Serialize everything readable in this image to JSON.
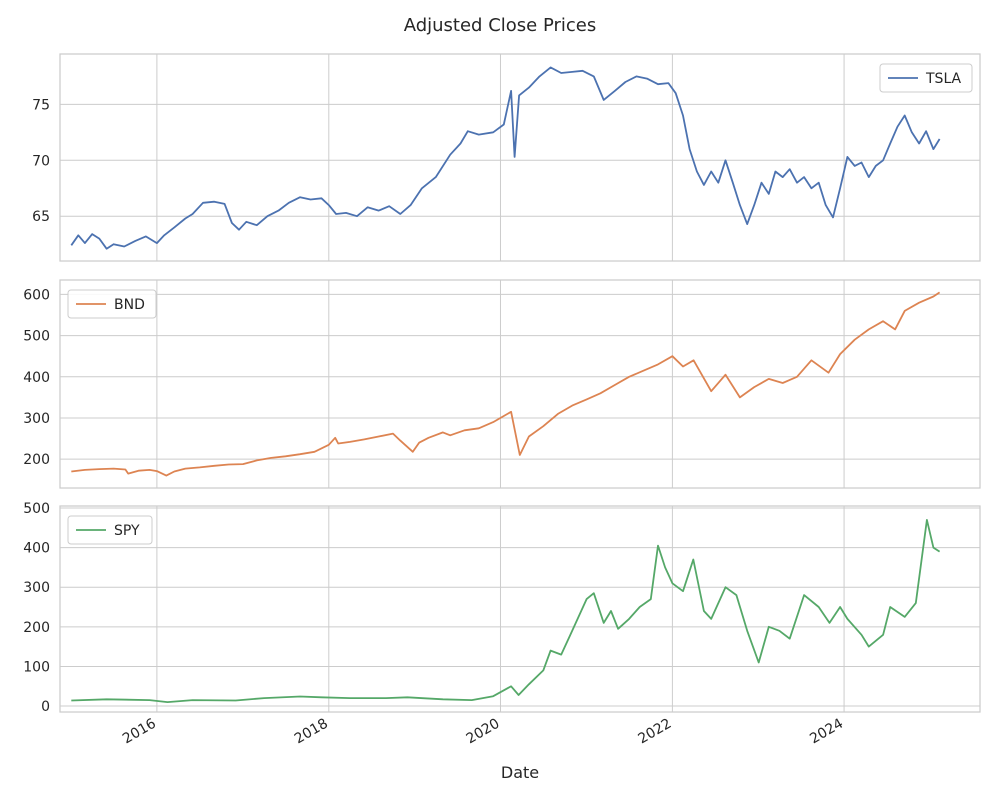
{
  "chart_data": {
    "type": "line",
    "title": "Adjusted Close Prices",
    "xlabel": "Date",
    "x_ticks": [
      "2016",
      "2018",
      "2020",
      "2022",
      "2024"
    ],
    "xlim": [
      "2014-11-15",
      "2025-08-01"
    ],
    "grid": true,
    "legend_placement_panels": [
      "top-right",
      "top-left",
      "top-left"
    ],
    "panels": [
      {
        "name": "TSLA",
        "color": "#4c72b0",
        "ylim": [
          61,
          79.5
        ],
        "yticks": [
          65,
          70,
          75
        ],
        "series": {
          "name": "TSLA",
          "points": [
            [
              "2015-01-02",
              62.4
            ],
            [
              "2015-02-01",
              63.3
            ],
            [
              "2015-03-01",
              62.6
            ],
            [
              "2015-04-01",
              63.4
            ],
            [
              "2015-05-01",
              63.0
            ],
            [
              "2015-06-01",
              62.1
            ],
            [
              "2015-07-01",
              62.5
            ],
            [
              "2015-08-15",
              62.3
            ],
            [
              "2015-10-01",
              62.8
            ],
            [
              "2015-11-15",
              63.2
            ],
            [
              "2016-01-01",
              62.6
            ],
            [
              "2016-02-01",
              63.3
            ],
            [
              "2016-03-15",
              64.0
            ],
            [
              "2016-05-01",
              64.8
            ],
            [
              "2016-06-01",
              65.2
            ],
            [
              "2016-07-15",
              66.2
            ],
            [
              "2016-09-01",
              66.3
            ],
            [
              "2016-10-15",
              66.1
            ],
            [
              "2016-11-15",
              64.4
            ],
            [
              "2016-12-15",
              63.8
            ],
            [
              "2017-01-15",
              64.5
            ],
            [
              "2017-03-01",
              64.2
            ],
            [
              "2017-04-15",
              65.0
            ],
            [
              "2017-06-01",
              65.5
            ],
            [
              "2017-07-15",
              66.2
            ],
            [
              "2017-09-01",
              66.7
            ],
            [
              "2017-10-15",
              66.5
            ],
            [
              "2017-12-01",
              66.6
            ],
            [
              "2018-01-01",
              66.0
            ],
            [
              "2018-02-01",
              65.2
            ],
            [
              "2018-03-15",
              65.3
            ],
            [
              "2018-05-01",
              65.0
            ],
            [
              "2018-06-15",
              65.8
            ],
            [
              "2018-08-01",
              65.5
            ],
            [
              "2018-09-15",
              65.9
            ],
            [
              "2018-11-01",
              65.2
            ],
            [
              "2018-12-15",
              66.0
            ],
            [
              "2019-02-01",
              67.5
            ],
            [
              "2019-04-01",
              68.5
            ],
            [
              "2019-06-01",
              70.5
            ],
            [
              "2019-07-15",
              71.5
            ],
            [
              "2019-08-15",
              72.6
            ],
            [
              "2019-10-01",
              72.3
            ],
            [
              "2019-12-01",
              72.5
            ],
            [
              "2020-01-15",
              73.2
            ],
            [
              "2020-02-15",
              76.2
            ],
            [
              "2020-03-01",
              70.3
            ],
            [
              "2020-03-20",
              75.8
            ],
            [
              "2020-05-01",
              76.5
            ],
            [
              "2020-06-15",
              77.5
            ],
            [
              "2020-08-01",
              78.3
            ],
            [
              "2020-09-15",
              77.8
            ],
            [
              "2020-11-01",
              77.9
            ],
            [
              "2020-12-15",
              78.0
            ],
            [
              "2021-02-01",
              77.5
            ],
            [
              "2021-03-15",
              75.4
            ],
            [
              "2021-05-01",
              76.2
            ],
            [
              "2021-06-15",
              77.0
            ],
            [
              "2021-08-01",
              77.5
            ],
            [
              "2021-09-15",
              77.3
            ],
            [
              "2021-11-01",
              76.8
            ],
            [
              "2021-12-15",
              76.9
            ],
            [
              "2022-01-15",
              76.0
            ],
            [
              "2022-02-15",
              74.0
            ],
            [
              "2022-03-15",
              71.0
            ],
            [
              "2022-04-15",
              69.0
            ],
            [
              "2022-05-15",
              67.8
            ],
            [
              "2022-06-15",
              69.0
            ],
            [
              "2022-07-15",
              68.0
            ],
            [
              "2022-08-15",
              70.0
            ],
            [
              "2022-09-15",
              68.0
            ],
            [
              "2022-10-15",
              66.0
            ],
            [
              "2022-11-15",
              64.3
            ],
            [
              "2022-12-15",
              66.0
            ],
            [
              "2023-01-15",
              68.0
            ],
            [
              "2023-02-15",
              67.0
            ],
            [
              "2023-03-15",
              69.0
            ],
            [
              "2023-04-15",
              68.5
            ],
            [
              "2023-05-15",
              69.2
            ],
            [
              "2023-06-15",
              68.0
            ],
            [
              "2023-07-15",
              68.5
            ],
            [
              "2023-08-15",
              67.5
            ],
            [
              "2023-09-15",
              68.0
            ],
            [
              "2023-10-15",
              66.0
            ],
            [
              "2023-11-15",
              64.9
            ],
            [
              "2023-12-15",
              67.5
            ],
            [
              "2024-01-15",
              70.3
            ],
            [
              "2024-02-15",
              69.5
            ],
            [
              "2024-03-15",
              69.8
            ],
            [
              "2024-04-15",
              68.5
            ],
            [
              "2024-05-15",
              69.5
            ],
            [
              "2024-06-15",
              70.0
            ],
            [
              "2024-07-15",
              71.5
            ],
            [
              "2024-08-15",
              73.0
            ],
            [
              "2024-09-15",
              74.0
            ],
            [
              "2024-10-15",
              72.5
            ],
            [
              "2024-11-15",
              71.5
            ],
            [
              "2024-12-15",
              72.6
            ],
            [
              "2025-01-15",
              71.0
            ],
            [
              "2025-02-10",
              71.9
            ]
          ]
        }
      },
      {
        "name": "BND",
        "color": "#dd8452",
        "ylim": [
          130,
          635
        ],
        "yticks": [
          200,
          300,
          400,
          500,
          600
        ],
        "series": {
          "name": "BND",
          "points": [
            [
              "2015-01-02",
              170
            ],
            [
              "2015-03-01",
              174
            ],
            [
              "2015-05-01",
              176
            ],
            [
              "2015-07-01",
              177
            ],
            [
              "2015-08-20",
              175
            ],
            [
              "2015-09-01",
              165
            ],
            [
              "2015-10-15",
              172
            ],
            [
              "2015-12-01",
              174
            ],
            [
              "2016-01-01",
              171
            ],
            [
              "2016-02-10",
              160
            ],
            [
              "2016-03-15",
              170
            ],
            [
              "2016-05-01",
              177
            ],
            [
              "2016-07-01",
              180
            ],
            [
              "2016-09-01",
              184
            ],
            [
              "2016-11-01",
              187
            ],
            [
              "2017-01-01",
              188
            ],
            [
              "2017-03-01",
              197
            ],
            [
              "2017-05-01",
              203
            ],
            [
              "2017-07-01",
              207
            ],
            [
              "2017-09-01",
              212
            ],
            [
              "2017-11-01",
              218
            ],
            [
              "2018-01-01",
              235
            ],
            [
              "2018-01-28",
              252
            ],
            [
              "2018-02-10",
              238
            ],
            [
              "2018-04-01",
              242
            ],
            [
              "2018-06-01",
              248
            ],
            [
              "2018-08-01",
              255
            ],
            [
              "2018-10-01",
              262
            ],
            [
              "2018-11-01",
              245
            ],
            [
              "2018-12-24",
              218
            ],
            [
              "2019-01-20",
              240
            ],
            [
              "2019-03-01",
              252
            ],
            [
              "2019-05-01",
              265
            ],
            [
              "2019-06-01",
              258
            ],
            [
              "2019-08-01",
              270
            ],
            [
              "2019-10-01",
              275
            ],
            [
              "2019-12-01",
              290
            ],
            [
              "2020-02-15",
              315
            ],
            [
              "2020-03-23",
              210
            ],
            [
              "2020-05-01",
              255
            ],
            [
              "2020-07-01",
              280
            ],
            [
              "2020-09-01",
              310
            ],
            [
              "2020-11-01",
              330
            ],
            [
              "2021-01-01",
              345
            ],
            [
              "2021-03-01",
              360
            ],
            [
              "2021-05-01",
              380
            ],
            [
              "2021-07-01",
              400
            ],
            [
              "2021-09-01",
              415
            ],
            [
              "2021-11-01",
              430
            ],
            [
              "2022-01-01",
              450
            ],
            [
              "2022-02-15",
              425
            ],
            [
              "2022-04-01",
              440
            ],
            [
              "2022-06-15",
              365
            ],
            [
              "2022-08-15",
              405
            ],
            [
              "2022-10-15",
              350
            ],
            [
              "2022-12-15",
              375
            ],
            [
              "2023-02-15",
              395
            ],
            [
              "2023-04-15",
              385
            ],
            [
              "2023-06-15",
              400
            ],
            [
              "2023-08-15",
              440
            ],
            [
              "2023-10-27",
              410
            ],
            [
              "2023-12-15",
              455
            ],
            [
              "2024-02-15",
              490
            ],
            [
              "2024-04-15",
              515
            ],
            [
              "2024-06-15",
              535
            ],
            [
              "2024-08-05",
              515
            ],
            [
              "2024-09-15",
              560
            ],
            [
              "2024-11-15",
              580
            ],
            [
              "2025-01-15",
              595
            ],
            [
              "2025-02-10",
              605
            ]
          ]
        }
      },
      {
        "name": "SPY",
        "color": "#55a868",
        "ylim": [
          -15,
          505
        ],
        "yticks": [
          0,
          100,
          200,
          300,
          400,
          500
        ],
        "series": {
          "name": "SPY",
          "points": [
            [
              "2015-01-02",
              14
            ],
            [
              "2015-06-01",
              17
            ],
            [
              "2015-12-01",
              15
            ],
            [
              "2016-02-15",
              10
            ],
            [
              "2016-06-01",
              15
            ],
            [
              "2016-12-01",
              14
            ],
            [
              "2017-04-01",
              20
            ],
            [
              "2017-09-01",
              24
            ],
            [
              "2017-12-01",
              22
            ],
            [
              "2018-04-01",
              20
            ],
            [
              "2018-09-01",
              20
            ],
            [
              "2018-12-01",
              22
            ],
            [
              "2019-05-01",
              17
            ],
            [
              "2019-09-01",
              15
            ],
            [
              "2019-12-01",
              25
            ],
            [
              "2020-02-15",
              50
            ],
            [
              "2020-03-18",
              28
            ],
            [
              "2020-05-01",
              55
            ],
            [
              "2020-07-01",
              90
            ],
            [
              "2020-08-01",
              140
            ],
            [
              "2020-09-15",
              130
            ],
            [
              "2020-11-01",
              190
            ],
            [
              "2021-01-01",
              270
            ],
            [
              "2021-02-01",
              285
            ],
            [
              "2021-03-15",
              210
            ],
            [
              "2021-04-15",
              240
            ],
            [
              "2021-05-15",
              195
            ],
            [
              "2021-07-01",
              220
            ],
            [
              "2021-08-15",
              250
            ],
            [
              "2021-10-01",
              270
            ],
            [
              "2021-11-01",
              405
            ],
            [
              "2021-12-01",
              350
            ],
            [
              "2022-01-01",
              310
            ],
            [
              "2022-02-15",
              290
            ],
            [
              "2022-03-31",
              370
            ],
            [
              "2022-05-15",
              240
            ],
            [
              "2022-06-15",
              220
            ],
            [
              "2022-08-15",
              300
            ],
            [
              "2022-09-30",
              280
            ],
            [
              "2022-11-15",
              190
            ],
            [
              "2023-01-03",
              110
            ],
            [
              "2023-02-15",
              200
            ],
            [
              "2023-04-01",
              190
            ],
            [
              "2023-05-15",
              170
            ],
            [
              "2023-07-15",
              280
            ],
            [
              "2023-09-15",
              250
            ],
            [
              "2023-10-31",
              210
            ],
            [
              "2023-12-15",
              250
            ],
            [
              "2024-01-15",
              220
            ],
            [
              "2024-03-15",
              180
            ],
            [
              "2024-04-15",
              150
            ],
            [
              "2024-06-15",
              180
            ],
            [
              "2024-07-15",
              250
            ],
            [
              "2024-09-15",
              225
            ],
            [
              "2024-11-01",
              260
            ],
            [
              "2024-12-18",
              470
            ],
            [
              "2025-01-15",
              400
            ],
            [
              "2025-02-10",
              390
            ]
          ]
        }
      }
    ]
  }
}
